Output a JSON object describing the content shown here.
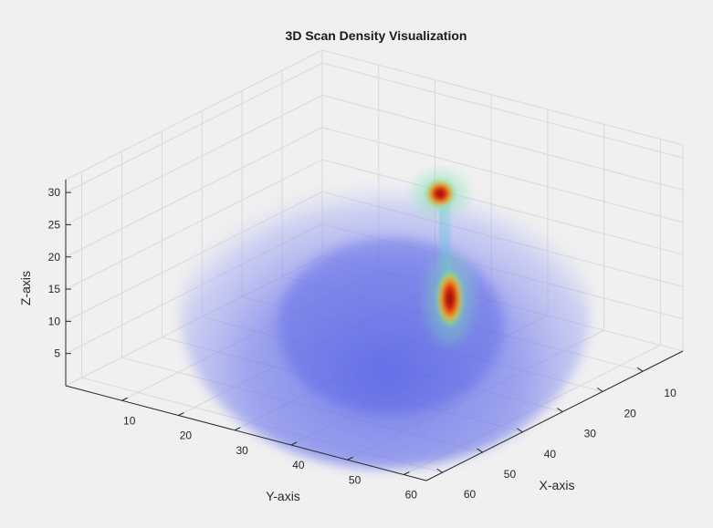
{
  "chart_data": {
    "type": "volume",
    "title": "3D Scan Density Visualization",
    "xlabel": "X-axis",
    "ylabel": "Y-axis",
    "zlabel": "Z-axis",
    "x_ticks": [
      10,
      20,
      30,
      40,
      50,
      60
    ],
    "y_ticks": [
      10,
      20,
      30,
      40,
      50,
      60
    ],
    "z_ticks": [
      5,
      10,
      15,
      20,
      25,
      30
    ],
    "xlim": [
      0,
      64
    ],
    "ylim": [
      0,
      64
    ],
    "zlim": [
      0,
      32
    ],
    "grid": true,
    "colormap": "jet",
    "volume": {
      "shape": "hemisphere",
      "center": [
        32,
        32,
        0
      ],
      "radius": 30,
      "base_density": "low (blue)"
    },
    "hotspots": [
      {
        "x": 24,
        "y": 38,
        "z": 26,
        "intensity": "high"
      },
      {
        "x": 30,
        "y": 44,
        "z": 13,
        "intensity": "very high"
      }
    ],
    "colors": {
      "background": "#f0f0f0",
      "low": "#4a56e8",
      "mid": "#3fd0d8",
      "high": "#e8551e",
      "peak": "#8a0a0a"
    }
  }
}
